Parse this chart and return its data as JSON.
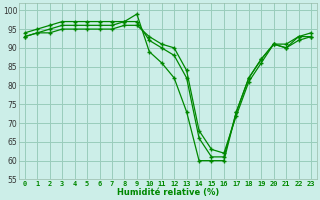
{
  "x": [
    0,
    1,
    2,
    3,
    4,
    5,
    6,
    7,
    8,
    9,
    10,
    11,
    12,
    13,
    14,
    15,
    16,
    17,
    18,
    19,
    20,
    21,
    22,
    23
  ],
  "line1": [
    94,
    95,
    96,
    97,
    97,
    97,
    97,
    97,
    97,
    99,
    89,
    86,
    82,
    73,
    60,
    60,
    60,
    73,
    82,
    87,
    91,
    90,
    93,
    94
  ],
  "line2": [
    93,
    94,
    95,
    96,
    96,
    96,
    96,
    96,
    97,
    97,
    92,
    90,
    88,
    82,
    66,
    61,
    61,
    73,
    82,
    87,
    91,
    91,
    93,
    93
  ],
  "line3": [
    93,
    94,
    94,
    95,
    95,
    95,
    95,
    95,
    96,
    96,
    93,
    91,
    90,
    84,
    68,
    63,
    62,
    72,
    81,
    86,
    91,
    90,
    92,
    93
  ],
  "bg_color": "#cceee8",
  "grid_color": "#99ccbb",
  "line_color": "#008800",
  "marker": "+",
  "xlabel": "Humidité relative (%)",
  "ylim": [
    55,
    102
  ],
  "xlim": [
    -0.5,
    23.5
  ],
  "yticks": [
    55,
    60,
    65,
    70,
    75,
    80,
    85,
    90,
    95,
    100
  ],
  "xtick_labels": [
    "0",
    "1",
    "2",
    "3",
    "4",
    "5",
    "6",
    "7",
    "8",
    "9",
    "10",
    "11",
    "12",
    "13",
    "14",
    "15",
    "16",
    "17",
    "18",
    "19",
    "20",
    "21",
    "22",
    "23"
  ]
}
